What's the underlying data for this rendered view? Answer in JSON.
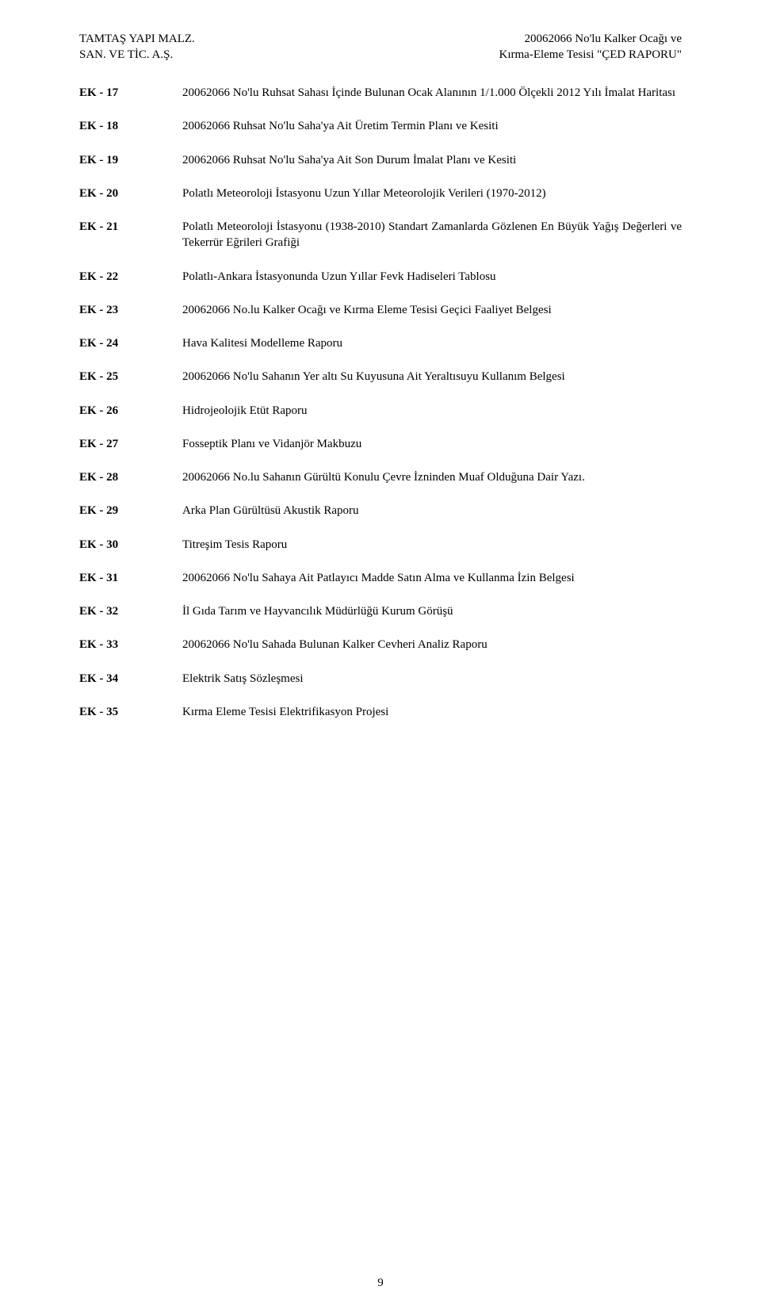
{
  "header": {
    "left_line1": "TAMTAŞ YAPI MALZ.",
    "left_line2": "SAN. VE TİC. A.Ş.",
    "right_line1": "20062066 No'lu Kalker Ocağı ve",
    "right_line2": "Kırma-Eleme Tesisi \"ÇED RAPORU\""
  },
  "entries": [
    {
      "key": "EK - 17",
      "value": "20062066 No'lu Ruhsat Sahası İçinde Bulunan Ocak Alanının 1/1.000 Ölçekli 2012 Yılı İmalat Haritası"
    },
    {
      "key": "EK - 18",
      "value": "20062066 Ruhsat No'lu Saha'ya Ait Üretim Termin Planı ve Kesiti"
    },
    {
      "key": "EK - 19",
      "value": "20062066 Ruhsat No'lu Saha'ya Ait Son Durum İmalat Planı ve Kesiti"
    },
    {
      "key": "EK - 20",
      "value": "Polatlı Meteoroloji İstasyonu Uzun Yıllar Meteorolojik Verileri (1970-2012)"
    },
    {
      "key": "EK - 21",
      "value": "Polatlı Meteoroloji İstasyonu (1938-2010) Standart Zamanlarda Gözlenen En Büyük Yağış Değerleri ve Tekerrür Eğrileri Grafiği"
    },
    {
      "key": "EK - 22",
      "value": "Polatlı-Ankara İstasyonunda Uzun Yıllar Fevk Hadiseleri Tablosu"
    },
    {
      "key": "EK - 23",
      "value": "20062066 No.lu Kalker Ocağı ve Kırma Eleme Tesisi Geçici Faaliyet Belgesi"
    },
    {
      "key": "EK - 24",
      "value": "Hava Kalitesi Modelleme Raporu"
    },
    {
      "key": "EK - 25",
      "value": "20062066 No'lu Sahanın Yer altı Su Kuyusuna Ait Yeraltısuyu Kullanım Belgesi"
    },
    {
      "key": "EK - 26",
      "value": "Hidrojeolojik Etüt Raporu"
    },
    {
      "key": "EK - 27",
      "value": "Fosseptik Planı ve Vidanjör Makbuzu"
    },
    {
      "key": "EK - 28",
      "value": "20062066 No.lu Sahanın Gürültü Konulu Çevre İzninden Muaf Olduğuna Dair Yazı."
    },
    {
      "key": "EK - 29",
      "value": "Arka Plan Gürültüsü Akustik Raporu"
    },
    {
      "key": "EK - 30",
      "value": "Titreşim Tesis Raporu"
    },
    {
      "key": "EK - 31",
      "value": "20062066 No'lu Sahaya Ait Patlayıcı Madde Satın Alma ve Kullanma İzin Belgesi"
    },
    {
      "key": "EK - 32",
      "value": "İl Gıda Tarım ve Hayvancılık Müdürlüğü Kurum Görüşü"
    },
    {
      "key": "EK - 33",
      "value": "20062066 No'lu Sahada Bulunan Kalker Cevheri Analiz Raporu"
    },
    {
      "key": "EK - 34",
      "value": "Elektrik Satış Sözleşmesi"
    },
    {
      "key": "EK - 35",
      "value": "Kırma Eleme Tesisi Elektrifikasyon Projesi"
    }
  ],
  "page_number": "9"
}
